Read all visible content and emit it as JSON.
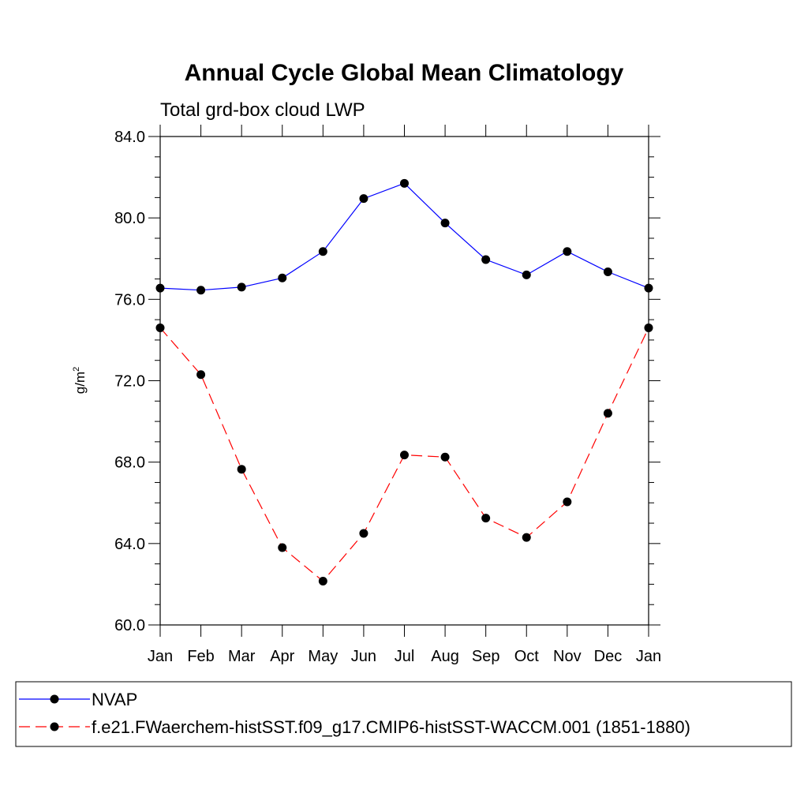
{
  "chart_data": {
    "type": "line",
    "title": "Annual Cycle Global Mean Climatology",
    "subtitle": "Total grd-box cloud LWP",
    "ylabel": "g/m",
    "ylabel_superscript": "2",
    "categories": [
      "Jan",
      "Feb",
      "Mar",
      "Apr",
      "May",
      "Jun",
      "Jul",
      "Aug",
      "Sep",
      "Oct",
      "Nov",
      "Dec",
      "Jan"
    ],
    "ylim": [
      60,
      84
    ],
    "yticks": [
      "60.0",
      "64.0",
      "68.0",
      "72.0",
      "76.0",
      "80.0",
      "84.0"
    ],
    "grid": false,
    "legend_position": "bottom",
    "series": [
      {
        "name": "NVAP",
        "color": "#0000ff",
        "dashed": false,
        "values": [
          76.55,
          76.45,
          76.6,
          77.05,
          78.35,
          80.95,
          81.7,
          79.75,
          77.95,
          77.2,
          78.35,
          77.35,
          76.55
        ]
      },
      {
        "name": "f.e21.FWaerchem-histSST.f09_g17.CMIP6-histSST-WACCM.001 (1851-1880)",
        "color": "#ff0000",
        "dashed": true,
        "values": [
          74.6,
          72.3,
          67.65,
          63.8,
          62.15,
          64.5,
          68.35,
          68.25,
          65.25,
          64.3,
          66.05,
          70.4,
          74.6
        ]
      }
    ]
  }
}
